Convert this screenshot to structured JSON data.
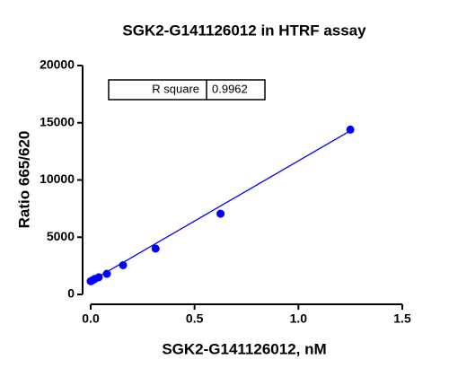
{
  "chart_data": {
    "type": "scatter",
    "title": "SGK2-G141126012 in HTRF assay",
    "x_label": "SGK2-G141126012, nM",
    "y_label": "Ratio 665/620",
    "series": [
      {
        "color": "#0000ff",
        "x": [
          0,
          0.0049,
          0.0098,
          0.0195,
          0.039,
          0.078,
          0.156,
          0.3125,
          0.625,
          1.25
        ],
        "values": [
          1150,
          1200,
          1250,
          1350,
          1500,
          1800,
          2550,
          4000,
          7050,
          14400
        ]
      }
    ],
    "fit_line": {
      "color": "#0000ff",
      "x": [
        0,
        1.25
      ],
      "values": [
        1150,
        14300
      ]
    },
    "inset_table": {
      "label": "R square",
      "value": 0.9962
    },
    "xlim": [
      0,
      1.5
    ],
    "xticks": [
      {
        "value": 0,
        "label": "0.0"
      },
      0.5,
      {
        "value": 1,
        "label": "1.0"
      },
      1.5
    ],
    "ylim": [
      0,
      20000
    ],
    "yticks": [
      0,
      5000,
      10000,
      15000,
      20000
    ],
    "grid": false
  }
}
